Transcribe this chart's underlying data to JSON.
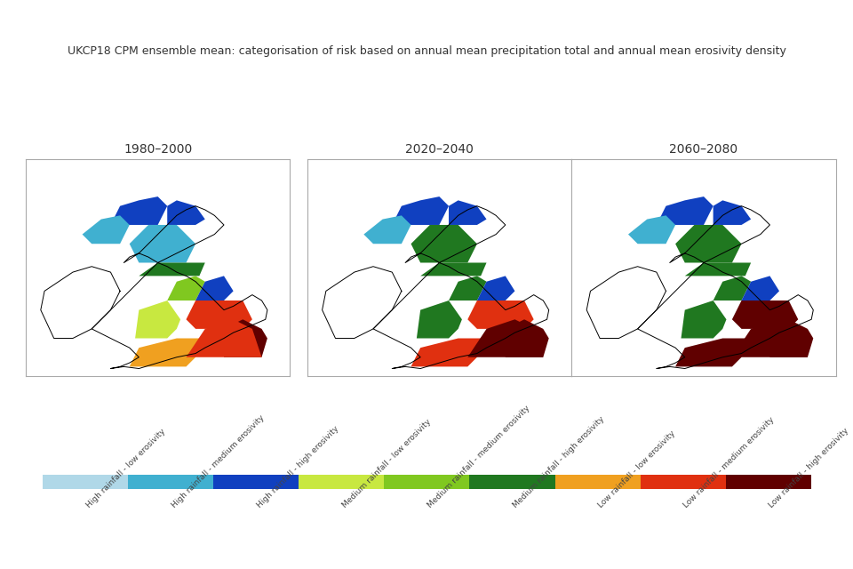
{
  "title": "UKCP18 CPM ensemble mean: categorisation of risk based on annual mean precipitation total and annual mean erosivity density",
  "periods": [
    "1980–2000",
    "2020–2040",
    "2060–2080"
  ],
  "colorbar_colors": [
    "#b0d8e8",
    "#40b0d0",
    "#1040c0",
    "#c8e840",
    "#80c820",
    "#207820",
    "#f0a020",
    "#e03010",
    "#600000"
  ],
  "colorbar_labels": [
    "High rainfall - low erosivity",
    "High rainfall - medium erosivity",
    "High rainfall - high erosivity",
    "Medium rainfall - low erosivity",
    "Medium rainfall - medium erosivity",
    "Medium rainfall - high erosivity",
    "Low rainfall - low erosivity",
    "Low rainfall - medium erosivity",
    "Low rainfall - high erosivity"
  ],
  "background_color": "#ffffff",
  "title_fontsize": 9,
  "period_fontsize": 10
}
